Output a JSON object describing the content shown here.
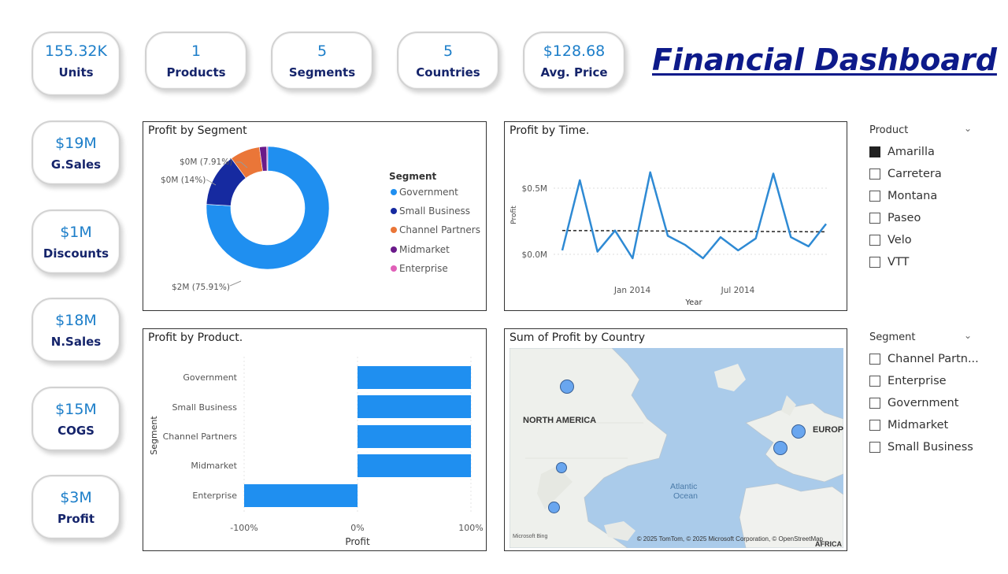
{
  "header": {
    "title": "Financial Dashboard"
  },
  "kpis_top": [
    {
      "value": "155.32K",
      "label": "Units"
    },
    {
      "value": "1",
      "label": "Products"
    },
    {
      "value": "5",
      "label": "Segments"
    },
    {
      "value": "5",
      "label": "Countries"
    },
    {
      "value": "$128.68",
      "label": "Avg. Price"
    }
  ],
  "kpis_side": [
    {
      "value": "$19M",
      "label": "G.Sales"
    },
    {
      "value": "$1M",
      "label": "Discounts"
    },
    {
      "value": "$18M",
      "label": "N.Sales"
    },
    {
      "value": "$15M",
      "label": "COGS"
    },
    {
      "value": "$3M",
      "label": "Profit"
    }
  ],
  "colors": {
    "accent": "#1f8ff0",
    "line": "#2e8ad4",
    "government": "#1f8ff0",
    "small_business": "#162aa0",
    "channel_partners": "#ea7638",
    "midmarket": "#6a1a8a",
    "enterprise": "#e060b8"
  },
  "profit_by_segment": {
    "title": "Profit by Segment",
    "legend_title": "Segment",
    "legend": [
      "Government",
      "Small Business",
      "Channel Partners",
      "Midmarket",
      "Enterprise"
    ],
    "labels": {
      "government": "$2M (75.91%)",
      "small_business": "$0M (14%)",
      "channel_partners": "$0M (7.91%)"
    }
  },
  "profit_by_time": {
    "title": "Profit by Time.",
    "ylabel": "Profit",
    "xlabel": "Year",
    "yticks": [
      "$0.5M",
      "$0.0M"
    ],
    "xticks": [
      "Jan 2014",
      "Jul 2014"
    ]
  },
  "profit_by_product": {
    "title": "Profit by Product.",
    "ylabel": "Segment",
    "xlabel": "Profit",
    "xticks": [
      "-100%",
      "0%",
      "100%"
    ]
  },
  "map": {
    "title": "Sum of Profit by Country",
    "labels": {
      "north_america": "NORTH AMERICA",
      "europe": "EUROPI",
      "ocean": "Atlantic",
      "ocean2": "Ocean",
      "africa": "AFRICA"
    },
    "attribution": "© 2025 TomTom, © 2025 Microsoft Corporation, © OpenStreetMap",
    "bing": "Microsoft Bing"
  },
  "product_slicer": {
    "header": "Product",
    "options": [
      {
        "label": "Amarilla",
        "checked": true
      },
      {
        "label": "Carretera",
        "checked": false
      },
      {
        "label": "Montana",
        "checked": false
      },
      {
        "label": "Paseo",
        "checked": false
      },
      {
        "label": "Velo",
        "checked": false
      },
      {
        "label": "VTT",
        "checked": false
      }
    ]
  },
  "segment_slicer": {
    "header": "Segment",
    "options": [
      {
        "label": "Channel Partn...",
        "checked": false
      },
      {
        "label": "Enterprise",
        "checked": false
      },
      {
        "label": "Government",
        "checked": false
      },
      {
        "label": "Midmarket",
        "checked": false
      },
      {
        "label": "Small Business",
        "checked": false
      }
    ]
  },
  "chart_data": [
    {
      "type": "pie",
      "title": "Profit by Segment",
      "categories": [
        "Government",
        "Small Business",
        "Channel Partners",
        "Midmarket",
        "Enterprise"
      ],
      "values": [
        75.91,
        14,
        7.91,
        1.9,
        0.28
      ],
      "value_labels": [
        "$2M (75.91%)",
        "$0M (14%)",
        "$0M (7.91%)",
        "",
        ""
      ],
      "donut": true,
      "legend": "right"
    },
    {
      "type": "line",
      "title": "Profit by Time.",
      "xlabel": "Year",
      "ylabel": "Profit",
      "x": [
        "2013-09",
        "2013-10",
        "2013-11",
        "2013-12",
        "2014-01",
        "2014-02",
        "2014-03",
        "2014-04",
        "2014-05",
        "2014-06",
        "2014-07",
        "2014-08",
        "2014-09",
        "2014-10",
        "2014-11",
        "2014-12"
      ],
      "series": [
        {
          "values": [
            0.03,
            0.56,
            0.02,
            0.18,
            -0.03,
            0.62,
            0.14,
            0.07,
            -0.03,
            0.13,
            0.03,
            0.12,
            0.61,
            0.13,
            0.06,
            0.23
          ]
        }
      ],
      "trendline": [
        0.18,
        0.17
      ],
      "ylim": [
        -0.1,
        0.7
      ],
      "yticks": [
        0.0,
        0.5
      ]
    },
    {
      "type": "bar",
      "orientation": "horizontal",
      "title": "Profit by Product.",
      "xlabel": "Profit",
      "ylabel": "Segment",
      "categories": [
        "Government",
        "Small Business",
        "Channel Partners",
        "Midmarket",
        "Enterprise"
      ],
      "values": [
        100,
        100,
        100,
        100,
        -100
      ],
      "xlim": [
        -100,
        100
      ],
      "unit": "%"
    }
  ]
}
